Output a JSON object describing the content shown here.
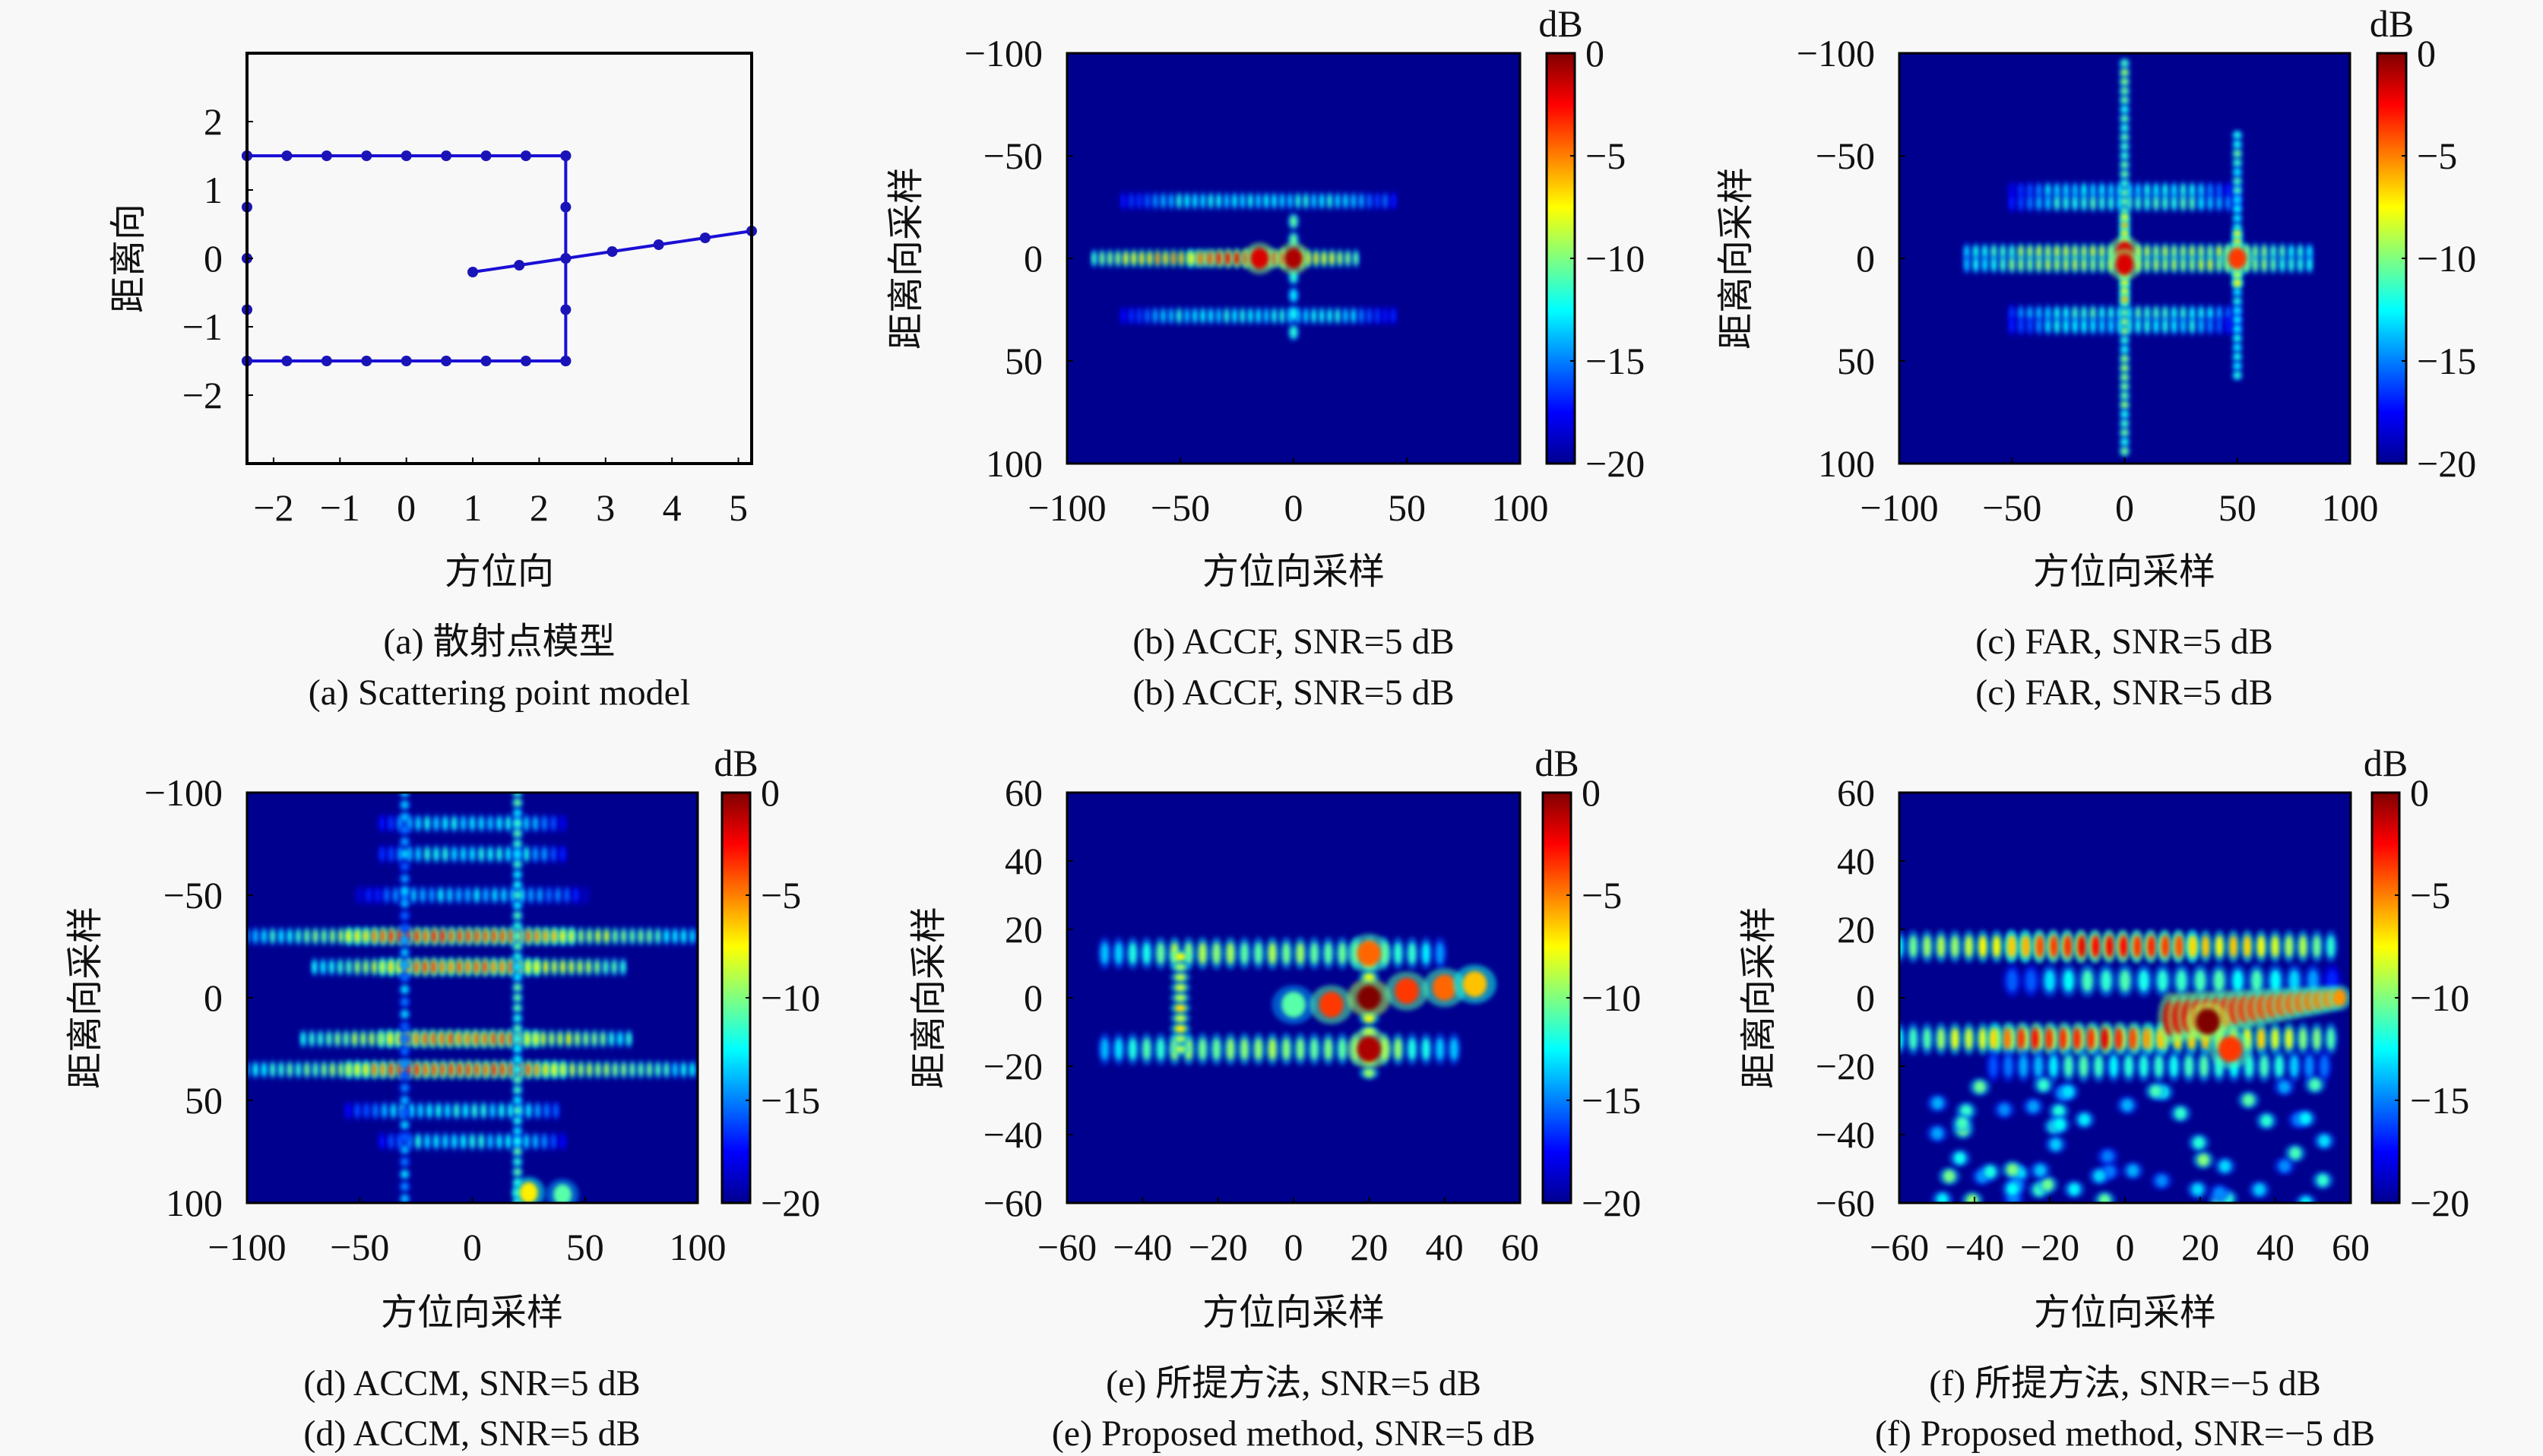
{
  "figure": {
    "colorbar": {
      "unit": "dB",
      "ticks": [
        "0",
        "−5",
        "−10",
        "−15",
        "−20"
      ],
      "range": [
        -20,
        0
      ],
      "colormap": "jet"
    },
    "colors": {
      "background": "#f8f8f8",
      "model_line": "#1a0fd6",
      "heat_background": "#00008f"
    }
  },
  "chart_data": [
    {
      "id": "a",
      "type": "scatter",
      "caption_zh": "(a) 散射点模型",
      "caption_en": "(a) Scattering point model",
      "xlabel": "方位向",
      "ylabel": "距离向",
      "xlim": [
        -2.4,
        5.2
      ],
      "ylim": [
        -3,
        3
      ],
      "xticks": [
        -2,
        -1,
        0,
        1,
        2,
        3,
        4,
        5
      ],
      "xtick_labels": [
        "−2",
        "−1",
        "0",
        "1",
        "2",
        "3",
        "4",
        "5"
      ],
      "yticks": [
        2,
        1,
        0,
        -1,
        -2
      ],
      "ytick_labels": [
        "2",
        "1",
        "0",
        "−1",
        "−2"
      ],
      "series": [
        {
          "name": "top-edge",
          "x": [
            -2.4,
            -1.8,
            -1.2,
            -0.6,
            0.0,
            0.6,
            1.2,
            1.8,
            2.4
          ],
          "y": [
            1.5,
            1.5,
            1.5,
            1.5,
            1.5,
            1.5,
            1.5,
            1.5,
            1.5
          ]
        },
        {
          "name": "bottom-edge",
          "x": [
            -2.4,
            -1.8,
            -1.2,
            -0.6,
            0.0,
            0.6,
            1.2,
            1.8,
            2.4
          ],
          "y": [
            -1.5,
            -1.5,
            -1.5,
            -1.5,
            -1.5,
            -1.5,
            -1.5,
            -1.5,
            -1.5
          ]
        },
        {
          "name": "left-edge",
          "x": [
            -2.4,
            -2.4,
            -2.4,
            -2.4,
            -2.4
          ],
          "y": [
            1.5,
            0.75,
            0,
            -0.75,
            -1.5
          ]
        },
        {
          "name": "right-edge",
          "x": [
            2.4,
            2.4,
            2.4,
            2.4,
            2.4
          ],
          "y": [
            1.5,
            0.75,
            0,
            -0.75,
            -1.5
          ]
        },
        {
          "name": "tail-line",
          "x": [
            1.0,
            1.7,
            2.4,
            3.1,
            3.8,
            4.5,
            5.2
          ],
          "y": [
            -0.2,
            -0.1,
            0.0,
            0.1,
            0.2,
            0.3,
            0.4
          ]
        }
      ]
    },
    {
      "id": "b",
      "type": "heatmap",
      "caption_zh": "(b) ACCF, SNR=5 dB",
      "caption_en": "(b) ACCF, SNR=5 dB",
      "xlabel": "方位向采样",
      "ylabel": "距离向采样",
      "xlim": [
        -100,
        100
      ],
      "ylim": [
        -100,
        100
      ],
      "y_reversed": true,
      "xticks": [
        -100,
        -50,
        0,
        50,
        100
      ],
      "xtick_labels": [
        "−100",
        "−50",
        "0",
        "50",
        "100"
      ],
      "yticks": [
        -100,
        -50,
        0,
        50,
        100
      ],
      "ytick_labels": [
        "−100",
        "−50",
        "0",
        "50",
        "100"
      ],
      "clim": [
        -20,
        0
      ],
      "features": [
        {
          "kind": "row",
          "y": -28,
          "x0": -75,
          "x1": 45,
          "step": 3.5,
          "db": -14
        },
        {
          "kind": "row",
          "y": 0,
          "x0": -88,
          "x1": 30,
          "step": 3.5,
          "db": -7
        },
        {
          "kind": "row",
          "y": 0,
          "x0": -45,
          "x1": 5,
          "step": 4,
          "db": -3
        },
        {
          "kind": "row",
          "y": 28,
          "x0": -75,
          "x1": 45,
          "step": 3.5,
          "db": -14
        },
        {
          "kind": "col",
          "x": 0,
          "y0": -18,
          "y1": 40,
          "step": 9,
          "db": -13
        },
        {
          "kind": "point",
          "x": 0,
          "y": 0,
          "db": -1
        },
        {
          "kind": "point",
          "x": -15,
          "y": 0,
          "db": -2
        }
      ]
    },
    {
      "id": "c",
      "type": "heatmap",
      "caption_zh": "(c) FAR, SNR=5 dB",
      "caption_en": "(c) FAR, SNR=5 dB",
      "xlabel": "方位向采样",
      "ylabel": "距离向采样",
      "xlim": [
        -100,
        100
      ],
      "ylim": [
        -100,
        100
      ],
      "y_reversed": true,
      "xticks": [
        -100,
        -50,
        0,
        50,
        100
      ],
      "xtick_labels": [
        "−100",
        "−50",
        "0",
        "50",
        "100"
      ],
      "yticks": [
        -100,
        -50,
        0,
        50,
        100
      ],
      "ytick_labels": [
        "−100",
        "−50",
        "0",
        "50",
        "100"
      ],
      "clim": [
        -20,
        0
      ],
      "features": [
        {
          "kind": "row",
          "y": -33,
          "x0": -50,
          "x1": 50,
          "step": 4,
          "db": -14
        },
        {
          "kind": "row",
          "y": -27,
          "x0": -50,
          "x1": 50,
          "step": 4,
          "db": -13
        },
        {
          "kind": "row",
          "y": -3,
          "x0": -70,
          "x1": 85,
          "step": 4,
          "db": -10
        },
        {
          "kind": "row",
          "y": 3,
          "x0": -70,
          "x1": 85,
          "step": 4,
          "db": -10
        },
        {
          "kind": "row",
          "y": 27,
          "x0": -50,
          "x1": 50,
          "step": 4,
          "db": -13
        },
        {
          "kind": "row",
          "y": 33,
          "x0": -50,
          "x1": 50,
          "step": 4,
          "db": -14
        },
        {
          "kind": "col",
          "x": 0,
          "y0": -95,
          "y1": 95,
          "step": 4.5,
          "db": -12
        },
        {
          "kind": "col",
          "x": 50,
          "y0": -60,
          "y1": 60,
          "step": 4.5,
          "db": -13
        },
        {
          "kind": "col",
          "x": 0,
          "y0": -20,
          "y1": 20,
          "step": 4,
          "db": -8
        },
        {
          "kind": "col",
          "x": 50,
          "y0": -12,
          "y1": 12,
          "step": 4,
          "db": -8
        },
        {
          "kind": "point",
          "x": 0,
          "y": -3,
          "db": -2
        },
        {
          "kind": "point",
          "x": 0,
          "y": 3,
          "db": -2
        },
        {
          "kind": "point",
          "x": 50,
          "y": 0,
          "db": -4
        }
      ]
    },
    {
      "id": "d",
      "type": "heatmap",
      "caption_zh": "(d) ACCM, SNR=5 dB",
      "caption_en": "(d) ACCM, SNR=5 dB",
      "xlabel": "方位向采样",
      "ylabel": "距离向采样",
      "xlim": [
        -100,
        100
      ],
      "ylim": [
        -100,
        100
      ],
      "y_reversed": true,
      "xticks": [
        -100,
        -50,
        0,
        50,
        100
      ],
      "xtick_labels": [
        "−100",
        "−50",
        "0",
        "50",
        "100"
      ],
      "yticks": [
        -100,
        -50,
        0,
        50,
        100
      ],
      "ytick_labels": [
        "−100",
        "−50",
        "0",
        "50",
        "100"
      ],
      "clim": [
        -20,
        0
      ],
      "features": [
        {
          "kind": "row",
          "y": -85,
          "x0": -40,
          "x1": 40,
          "step": 4,
          "db": -14
        },
        {
          "kind": "row",
          "y": -70,
          "x0": -40,
          "x1": 40,
          "step": 4,
          "db": -14
        },
        {
          "kind": "row",
          "y": -50,
          "x0": -50,
          "x1": 50,
          "step": 4,
          "db": -15
        },
        {
          "kind": "row",
          "y": -30,
          "x0": -100,
          "x1": 100,
          "step": 3.8,
          "db": -10
        },
        {
          "kind": "row",
          "y": -30,
          "x0": -55,
          "x1": 45,
          "step": 3.8,
          "db": -4
        },
        {
          "kind": "row",
          "y": -15,
          "x0": -70,
          "x1": 70,
          "step": 3.8,
          "db": -9
        },
        {
          "kind": "row",
          "y": -15,
          "x0": -40,
          "x1": 30,
          "step": 3.8,
          "db": -5
        },
        {
          "kind": "row",
          "y": 20,
          "x0": -75,
          "x1": 70,
          "step": 3.8,
          "db": -9
        },
        {
          "kind": "row",
          "y": 20,
          "x0": -40,
          "x1": 30,
          "step": 3.8,
          "db": -5
        },
        {
          "kind": "row",
          "y": 35,
          "x0": -100,
          "x1": 100,
          "step": 3.8,
          "db": -10
        },
        {
          "kind": "row",
          "y": 35,
          "x0": -55,
          "x1": 40,
          "step": 3.8,
          "db": -4
        },
        {
          "kind": "row",
          "y": 55,
          "x0": -55,
          "x1": 40,
          "step": 4,
          "db": -14
        },
        {
          "kind": "row",
          "y": 70,
          "x0": -40,
          "x1": 40,
          "step": 4,
          "db": -14
        },
        {
          "kind": "col",
          "x": 20,
          "y0": -100,
          "y1": 100,
          "step": 5,
          "db": -13
        },
        {
          "kind": "col",
          "x": -30,
          "y0": -100,
          "y1": 100,
          "step": 6,
          "db": -16
        },
        {
          "kind": "point",
          "x": 25,
          "y": 95,
          "db": -8
        },
        {
          "kind": "point",
          "x": 40,
          "y": 96,
          "db": -12
        }
      ]
    },
    {
      "id": "e",
      "type": "heatmap",
      "caption_zh": "(e) 所提方法, SNR=5 dB",
      "caption_en": "(e) Proposed method, SNR=5 dB",
      "xlabel": "方位向采样",
      "ylabel": "距离向采样",
      "xlim": [
        -60,
        60
      ],
      "ylim": [
        -60,
        60
      ],
      "y_reversed": false,
      "xticks": [
        -60,
        -40,
        -20,
        0,
        20,
        40,
        60
      ],
      "xtick_labels": [
        "−60",
        "−40",
        "−20",
        "0",
        "20",
        "40",
        "60"
      ],
      "yticks": [
        60,
        40,
        20,
        0,
        -20,
        -40,
        -60
      ],
      "ytick_labels": [
        "60",
        "40",
        "20",
        "0",
        "−20",
        "−40",
        "−60"
      ],
      "clim": [
        -20,
        0
      ],
      "features": [
        {
          "kind": "row",
          "y": 13,
          "x0": -50,
          "x1": 40,
          "step": 3.7,
          "db": -11
        },
        {
          "kind": "row",
          "y": -15,
          "x0": -50,
          "x1": 45,
          "step": 3.7,
          "db": -11
        },
        {
          "kind": "col",
          "x": -30,
          "y0": -15,
          "y1": 13,
          "step": 3,
          "db": -9
        },
        {
          "kind": "col",
          "x": 20,
          "y0": -22,
          "y1": 15,
          "step": 4,
          "db": -10
        },
        {
          "kind": "point",
          "x": 20,
          "y": 13,
          "db": -5
        },
        {
          "kind": "point",
          "x": 20,
          "y": -15,
          "db": -1
        },
        {
          "kind": "point",
          "x": 0,
          "y": -2,
          "db": -12
        },
        {
          "kind": "point",
          "x": 10,
          "y": -2,
          "db": -4
        },
        {
          "kind": "point",
          "x": 20,
          "y": 0,
          "db": 0
        },
        {
          "kind": "point",
          "x": 30,
          "y": 2,
          "db": -4
        },
        {
          "kind": "point",
          "x": 40,
          "y": 3,
          "db": -5
        },
        {
          "kind": "point",
          "x": 48,
          "y": 4,
          "db": -7
        }
      ]
    },
    {
      "id": "f",
      "type": "heatmap",
      "caption_zh": "(f) 所提方法, SNR=−5 dB",
      "caption_en": "(f) Proposed method, SNR=−5 dB",
      "xlabel": "方位向采样",
      "ylabel": "距离向采样",
      "xlim": [
        -60,
        60
      ],
      "ylim": [
        -60,
        60
      ],
      "y_reversed": false,
      "xticks": [
        -60,
        -40,
        -20,
        0,
        20,
        40,
        60
      ],
      "xtick_labels": [
        "−60",
        "−40",
        "−20",
        "0",
        "20",
        "40",
        "60"
      ],
      "yticks": [
        60,
        40,
        20,
        0,
        -20,
        -40,
        -60
      ],
      "ytick_labels": [
        "60",
        "40",
        "20",
        "0",
        "−20",
        "−40",
        "−60"
      ],
      "clim": [
        -20,
        0
      ],
      "features": [
        {
          "kind": "row",
          "y": 15,
          "x0": -60,
          "x1": 58,
          "step": 3.7,
          "db": -8
        },
        {
          "kind": "row",
          "y": 15,
          "x0": -30,
          "x1": 20,
          "step": 3.7,
          "db": -3
        },
        {
          "kind": "row",
          "y": -12,
          "x0": -60,
          "x1": 58,
          "step": 3.7,
          "db": -8
        },
        {
          "kind": "row",
          "y": -12,
          "x0": -35,
          "x1": 10,
          "step": 3.7,
          "db": -3
        },
        {
          "kind": "row",
          "y": -20,
          "x0": -35,
          "x1": 55,
          "step": 4,
          "db": -13
        },
        {
          "kind": "row",
          "y": 5,
          "x0": -30,
          "x1": 55,
          "step": 5,
          "db": -13
        },
        {
          "kind": "streak",
          "x0": 12,
          "y0": -6,
          "x1": 57,
          "y1": 0,
          "db": -2
        },
        {
          "kind": "point",
          "x": 22,
          "y": -7,
          "db": 0
        },
        {
          "kind": "point",
          "x": 28,
          "y": -15,
          "db": -4
        },
        {
          "kind": "scatter",
          "x0": -50,
          "x1": 55,
          "y0": -60,
          "y1": -25,
          "count": 60,
          "db": -15
        }
      ]
    }
  ]
}
